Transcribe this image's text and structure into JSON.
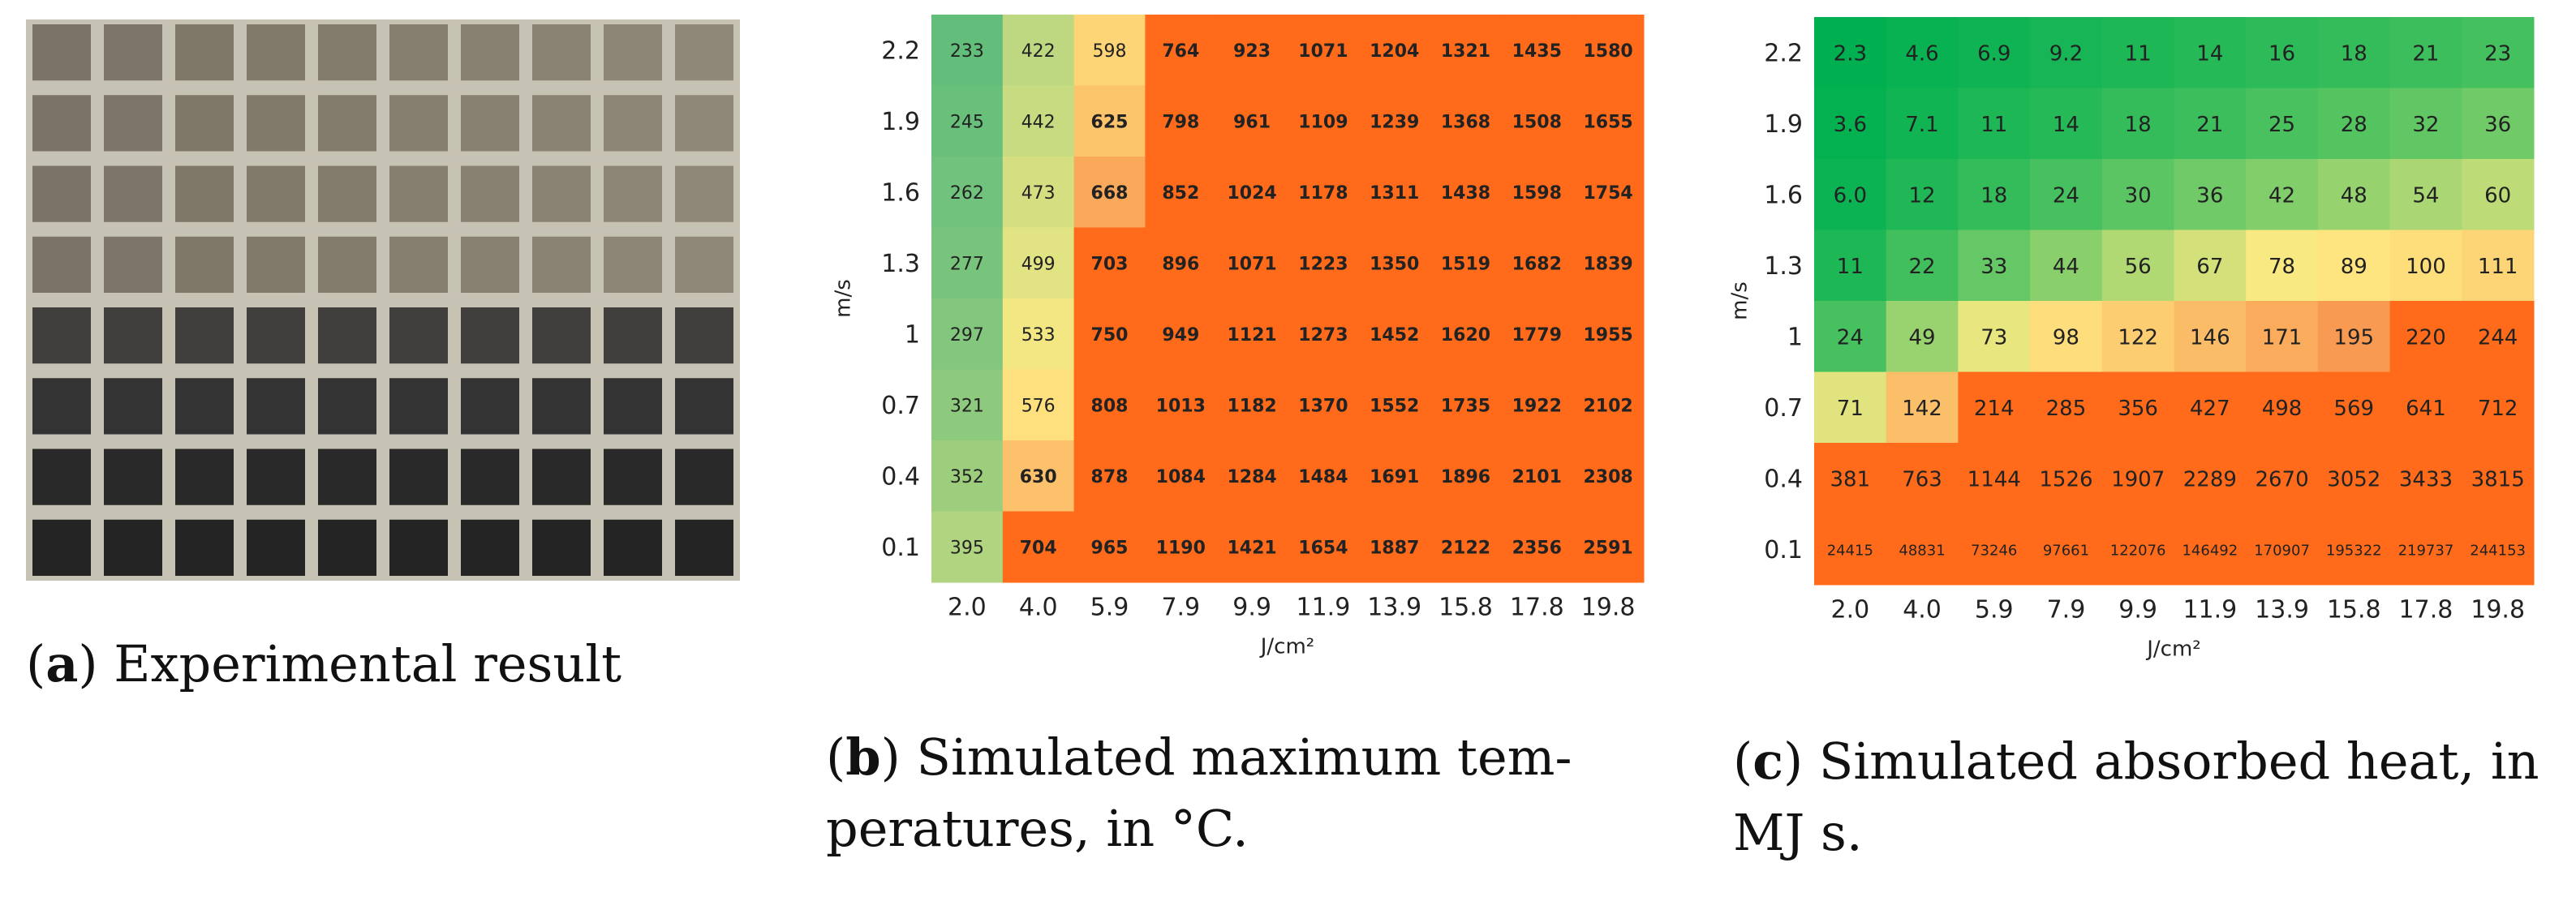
{
  "panel_a": {
    "caption_letter": "a",
    "caption_text": "Experimental result",
    "photo_grid": {
      "rows": 8,
      "cols": 10,
      "shade_by_row": [
        0.15,
        0.14,
        0.13,
        0.2,
        0.55,
        0.72,
        0.85,
        0.92
      ],
      "background_color": "#c6c2b4"
    }
  },
  "panel_b": {
    "caption_letter": "b",
    "caption_text_1": "Simulated maximum tem-",
    "caption_text_2": "peratures, in °C."
  },
  "panel_c": {
    "caption_letter": "c",
    "caption_text_1": "Simulated absorbed heat, in",
    "caption_text_2": "MJ s."
  },
  "colors": {
    "green_dark": "#00b050",
    "green": "#63be7b",
    "yellow": "#ffeb84",
    "orange": "#f8964f",
    "orange_red": "#ff6b1a"
  },
  "chart_data": [
    {
      "type": "heatmap",
      "title": "",
      "xlabel": "J/cm²",
      "ylabel": "m/s",
      "x": [
        "2.0",
        "4.0",
        "5.9",
        "7.9",
        "9.9",
        "11.9",
        "13.9",
        "15.8",
        "17.8",
        "19.8"
      ],
      "y": [
        "2.2",
        "1.9",
        "1.6",
        "1.3",
        "1",
        "0.7",
        "0.4",
        "0.1"
      ],
      "values": [
        [
          233,
          422,
          598,
          764,
          923,
          1071,
          1204,
          1321,
          1435,
          1580
        ],
        [
          245,
          442,
          625,
          798,
          961,
          1109,
          1239,
          1368,
          1508,
          1655
        ],
        [
          262,
          473,
          668,
          852,
          1024,
          1178,
          1311,
          1438,
          1598,
          1754
        ],
        [
          277,
          499,
          703,
          896,
          1071,
          1223,
          1350,
          1519,
          1682,
          1839
        ],
        [
          297,
          533,
          750,
          949,
          1121,
          1273,
          1452,
          1620,
          1779,
          1955
        ],
        [
          321,
          576,
          808,
          1013,
          1182,
          1370,
          1552,
          1735,
          1922,
          2102
        ],
        [
          352,
          630,
          878,
          1084,
          1284,
          1484,
          1691,
          1896,
          2101,
          2308
        ],
        [
          395,
          704,
          965,
          1190,
          1421,
          1654,
          1887,
          2122,
          2356,
          2591
        ]
      ],
      "labels": [
        [
          "233",
          "422",
          "598",
          "764",
          "923",
          "1071",
          "1204",
          "1321",
          "1435",
          "1580"
        ],
        [
          "245",
          "442",
          "625",
          "798",
          "961",
          "1109",
          "1239",
          "1368",
          "1508",
          "1655"
        ],
        [
          "262",
          "473",
          "668",
          "852",
          "1024",
          "1178",
          "1311",
          "1438",
          "1598",
          "1754"
        ],
        [
          "277",
          "499",
          "703",
          "896",
          "1071",
          "1223",
          "1350",
          "1519",
          "1682",
          "1839"
        ],
        [
          "297",
          "533",
          "750",
          "949",
          "1121",
          "1273",
          "1452",
          "1620",
          "1779",
          "1955"
        ],
        [
          "321",
          "576",
          "808",
          "1013",
          "1182",
          "1370",
          "1552",
          "1735",
          "1922",
          "2102"
        ],
        [
          "352",
          "630",
          "878",
          "1084",
          "1284",
          "1484",
          "1691",
          "1896",
          "2101",
          "2308"
        ],
        [
          "395",
          "704",
          "965",
          "1190",
          "1421",
          "1654",
          "1887",
          "2122",
          "2356",
          "2591"
        ]
      ],
      "color_scale": {
        "low": "#63be7b",
        "mid": "#ffeb84",
        "high": "#f8964f",
        "clip": "#ff6b1a",
        "low_value": 233,
        "mid_value": 560,
        "high_value": 700
      },
      "bold_from_value": 620
    },
    {
      "type": "heatmap",
      "title": "",
      "xlabel": "J/cm²",
      "ylabel": "m/s",
      "x": [
        "2.0",
        "4.0",
        "5.9",
        "7.9",
        "9.9",
        "11.9",
        "13.9",
        "15.8",
        "17.8",
        "19.8"
      ],
      "y": [
        "2.2",
        "1.9",
        "1.6",
        "1.3",
        "1",
        "0.7",
        "0.4",
        "0.1"
      ],
      "values": [
        [
          2.3,
          4.6,
          6.9,
          9.2,
          11,
          14,
          16,
          18,
          21,
          23
        ],
        [
          3.6,
          7.1,
          11,
          14,
          18,
          21,
          25,
          28,
          32,
          36
        ],
        [
          6.0,
          12,
          18,
          24,
          30,
          36,
          42,
          48,
          54,
          60
        ],
        [
          11,
          22,
          33,
          44,
          56,
          67,
          78,
          89,
          100,
          111
        ],
        [
          24,
          49,
          73,
          98,
          122,
          146,
          171,
          195,
          220,
          244
        ],
        [
          71,
          142,
          214,
          285,
          356,
          427,
          498,
          569,
          641,
          712
        ],
        [
          381,
          763,
          1144,
          1526,
          1907,
          2289,
          2670,
          3052,
          3433,
          3815
        ],
        [
          24415,
          48831,
          73246,
          97661,
          122076,
          146492,
          170907,
          195322,
          219737,
          244153
        ]
      ],
      "labels": [
        [
          "2.3",
          "4.6",
          "6.9",
          "9.2",
          "11",
          "14",
          "16",
          "18",
          "21",
          "23"
        ],
        [
          "3.6",
          "7.1",
          "11",
          "14",
          "18",
          "21",
          "25",
          "28",
          "32",
          "36"
        ],
        [
          "6.0",
          "12",
          "18",
          "24",
          "30",
          "36",
          "42",
          "48",
          "54",
          "60"
        ],
        [
          "11",
          "22",
          "33",
          "44",
          "56",
          "67",
          "78",
          "89",
          "100",
          "111"
        ],
        [
          "24",
          "49",
          "73",
          "98",
          "122",
          "146",
          "171",
          "195",
          "220",
          "244"
        ],
        [
          "71",
          "142",
          "214",
          "285",
          "356",
          "427",
          "498",
          "569",
          "641",
          "712"
        ],
        [
          "381",
          "763",
          "1144",
          "1526",
          "1907",
          "2289",
          "2670",
          "3052",
          "3433",
          "3815"
        ],
        [
          "24415",
          "48831",
          "73246",
          "97661",
          "122076",
          "146492",
          "170907",
          "195322",
          "219737",
          "244153"
        ]
      ],
      "color_scale": {
        "low": "#00b050",
        "mid": "#ffeb84",
        "high": "#f8964f",
        "clip": "#ff6b1a",
        "low_value": 2.3,
        "mid_value": 80,
        "high_value": 200
      },
      "bold_from_value": null
    }
  ]
}
